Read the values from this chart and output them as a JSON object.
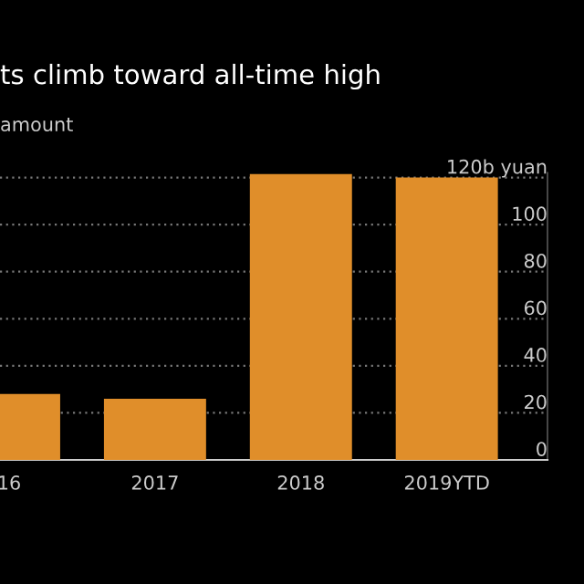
{
  "chart_data": {
    "type": "bar",
    "title": "ts climb toward all-time high",
    "subtitle": "amount",
    "categories": [
      "16",
      "2017",
      "2018",
      "2019YTD"
    ],
    "values": [
      28,
      26,
      121.5,
      120
    ],
    "color": "#e08e2a",
    "ylim": [
      0,
      122
    ],
    "yticks": [
      0,
      20,
      40,
      60,
      80,
      100,
      {
        "value": 120,
        "label": "120b yuan"
      }
    ],
    "grid": "y"
  }
}
